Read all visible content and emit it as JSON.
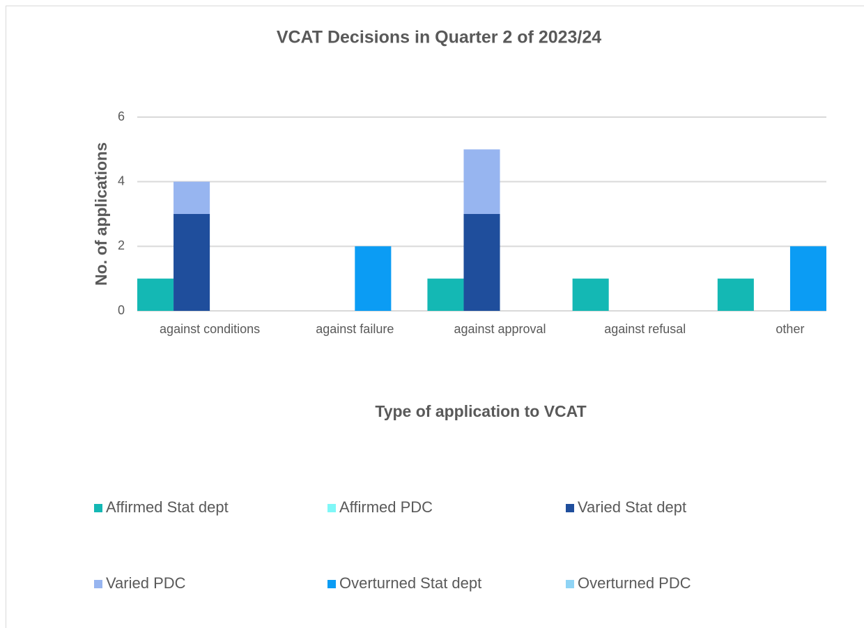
{
  "chart_data": {
    "type": "bar",
    "title": "VCAT Decisions in Quarter 2 of 2023/24",
    "x_label": "Type of application to VCAT",
    "y_label": "No. of applications",
    "categories": [
      "against conditions",
      "against failure",
      "against approval",
      "against refusal",
      "other"
    ],
    "series": [
      {
        "name": "Affirmed Stat dept",
        "color": "#14b8b4",
        "values": [
          1,
          0,
          1,
          1,
          1
        ]
      },
      {
        "name": "Affirmed PDC",
        "color": "#7ff7f7",
        "values": [
          0,
          0,
          0,
          0,
          0
        ]
      },
      {
        "name": "Varied Stat dept",
        "color": "#1f4e9c",
        "values": [
          3,
          0,
          3,
          0,
          0
        ]
      },
      {
        "name": "Varied PDC",
        "color": "#97b5f0",
        "values": [
          1,
          0,
          2,
          0,
          0
        ]
      },
      {
        "name": "Overturned Stat dept",
        "color": "#0b9cf4",
        "values": [
          0,
          2,
          0,
          0,
          2
        ]
      },
      {
        "name": "Overturned PDC",
        "color": "#8fd4f5",
        "values": [
          0,
          0,
          0,
          0,
          0
        ]
      }
    ],
    "ylim": [
      0,
      6
    ],
    "yticks": [
      0,
      2,
      4,
      6
    ],
    "grid": true,
    "stacked": true,
    "legend": "bottom"
  }
}
